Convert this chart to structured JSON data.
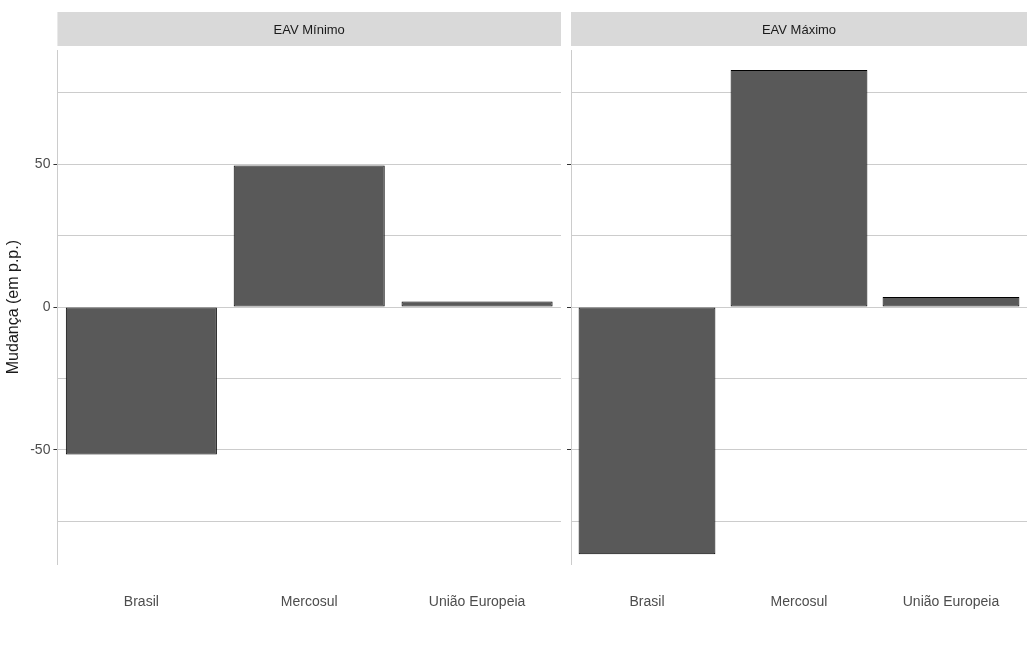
{
  "chart_data": [
    {
      "type": "bar",
      "title": "EAV Mínimo",
      "ylabel": "Mudança (em p.p.)",
      "categories": [
        "Brasil",
        "Mercosul",
        "União Europeia"
      ],
      "values": [
        -51.6,
        49.6,
        2.0
      ],
      "color": "#595959",
      "ylim": [
        -90,
        90
      ],
      "yticks": [
        {
          "value": -75,
          "label": null
        },
        -50,
        {
          "value": -25,
          "label": null
        },
        0,
        {
          "value": 25,
          "label": null
        },
        50,
        {
          "value": 75,
          "label": null
        }
      ],
      "grid": "y"
    },
    {
      "type": "bar",
      "title": "EAV Máximo",
      "categories": [
        "Brasil",
        "Mercosul",
        "União Europeia"
      ],
      "values": [
        -86.5,
        83.0,
        3.5
      ],
      "color": "#595959",
      "ylim": [
        -90,
        90
      ],
      "yticks": [
        {
          "value": -75,
          "label": null
        },
        -50,
        {
          "value": -25,
          "label": null
        },
        0,
        {
          "value": 25,
          "label": null
        },
        50,
        {
          "value": 75,
          "label": null
        }
      ],
      "grid": "y",
      "tick_labels": "x"
    }
  ]
}
